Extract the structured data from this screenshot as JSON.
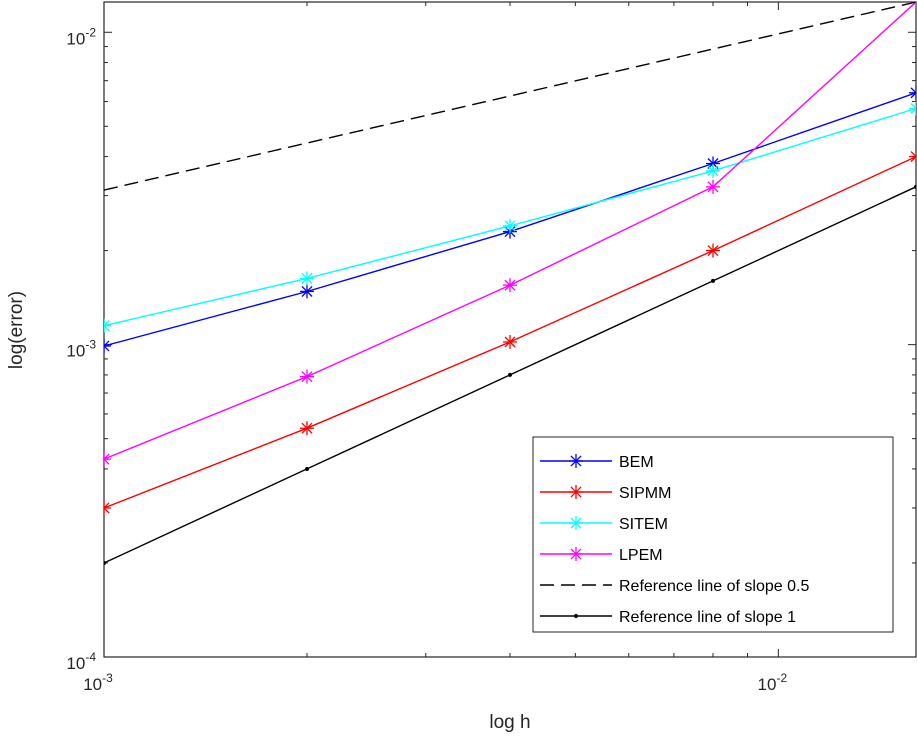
{
  "chart_data": {
    "type": "line",
    "xlabel": "log h",
    "ylabel": "log(error)",
    "xscale": "log",
    "yscale": "log",
    "xlim": [
      0.001,
      0.016
    ],
    "ylim": [
      0.0001,
      0.0125
    ],
    "x_ticks": [
      {
        "value": 0.001,
        "base": "10",
        "exp": "-3"
      },
      {
        "value": 0.01,
        "base": "10",
        "exp": "-2"
      }
    ],
    "y_ticks": [
      {
        "value": 0.0001,
        "base": "10",
        "exp": "-4"
      },
      {
        "value": 0.001,
        "base": "10",
        "exp": "-3"
      },
      {
        "value": 0.01,
        "base": "10",
        "exp": "-2"
      }
    ],
    "grid": false,
    "legend_position": "bottom-right",
    "x": [
      0.001,
      0.002,
      0.004,
      0.008,
      0.016
    ],
    "series": [
      {
        "name": "BEM",
        "color": "#0000ff",
        "dash": "solid",
        "marker": "asterisk",
        "values": [
          0.00099,
          0.00148,
          0.0023,
          0.0038,
          0.0064
        ]
      },
      {
        "name": "SIPMM",
        "color": "#ff0000",
        "dash": "solid",
        "marker": "asterisk",
        "values": [
          0.0003,
          0.00054,
          0.00102,
          0.002,
          0.004
        ]
      },
      {
        "name": "SITEM",
        "color": "#00ffff",
        "dash": "solid",
        "marker": "asterisk",
        "values": [
          0.00115,
          0.00163,
          0.0024,
          0.0036,
          0.0057
        ]
      },
      {
        "name": "LPEM",
        "color": "#ff00ff",
        "dash": "solid",
        "marker": "asterisk",
        "values": [
          0.00043,
          0.00079,
          0.00155,
          0.0032,
          0.0125
        ]
      },
      {
        "name": "Reference line of slope 0.5",
        "color": "#000000",
        "dash": "dashed",
        "marker": "none",
        "values": [
          0.003125,
          0.00442,
          0.00625,
          0.00884,
          0.0125
        ]
      },
      {
        "name": "Reference line of slope 1",
        "color": "#000000",
        "dash": "solid",
        "marker": "dot",
        "values": [
          0.0002,
          0.0004,
          0.0008,
          0.0016,
          0.0032
        ]
      }
    ]
  }
}
